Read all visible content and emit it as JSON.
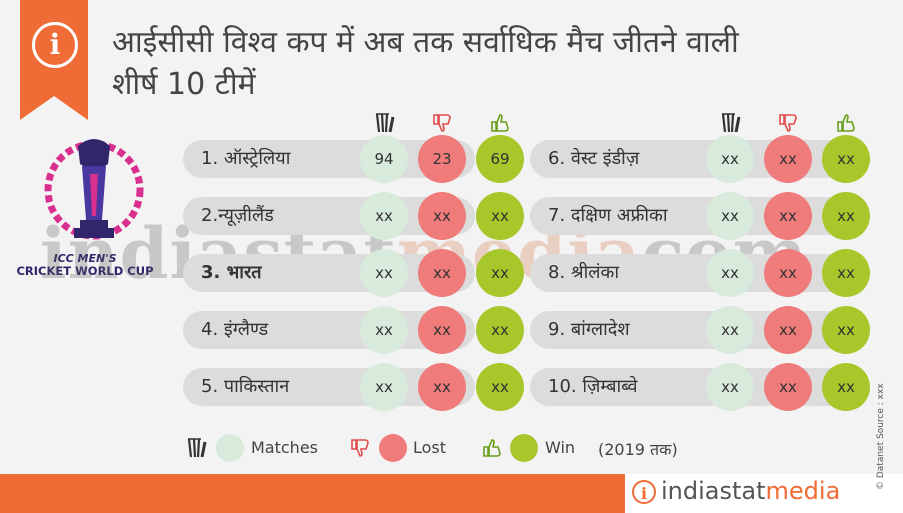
{
  "title_line1": "आईसीसी विश्व कप में अब तक सर्वाधिक मैच जीतने वाली",
  "title_line2": "शीर्ष 10 टीमें",
  "logo": {
    "line1": "ICC MEN'S",
    "line2": "CRICKET WORLD CUP"
  },
  "column_icons": [
    "match-icon",
    "thumbs-down-icon",
    "thumbs-up-icon"
  ],
  "colors": {
    "matches": "#d7eadb",
    "lost": "#ef7b7b",
    "win": "#a7c72a",
    "accent": "#ef6c36"
  },
  "chart_data": {
    "type": "table",
    "columns": [
      "Matches",
      "Lost",
      "Win"
    ],
    "rows": [
      {
        "team": "1. ऑस्ट्रेलिया",
        "matches": "94",
        "lost": "23",
        "win": "69"
      },
      {
        "team": "2.न्यूज़ीलैंड",
        "matches": "xx",
        "lost": "xx",
        "win": "xx"
      },
      {
        "team": "3. भारत",
        "matches": "xx",
        "lost": "xx",
        "win": "xx"
      },
      {
        "team": "4. इंग्लैण्ड",
        "matches": "xx",
        "lost": "xx",
        "win": "xx"
      },
      {
        "team": "5. पाकिस्तान",
        "matches": "xx",
        "lost": "xx",
        "win": "xx"
      },
      {
        "team": "6. वेस्ट इंडीज़",
        "matches": "xx",
        "lost": "xx",
        "win": "xx"
      },
      {
        "team": "7. दक्षिण अफ्रीका",
        "matches": "xx",
        "lost": "xx",
        "win": "xx"
      },
      {
        "team": "8. श्रीलंका",
        "matches": "xx",
        "lost": "xx",
        "win": "xx"
      },
      {
        "team": "9. बांग्लादेश",
        "matches": "xx",
        "lost": "xx",
        "win": "xx"
      },
      {
        "team": "10. ज़िम्बाब्वे",
        "matches": "xx",
        "lost": "xx",
        "win": "xx"
      }
    ]
  },
  "legend": {
    "matches": "Matches",
    "lost": "Lost",
    "win": "Win",
    "note": "(2019 तक)"
  },
  "watermark": {
    "part1": "indiastat",
    "part2": "media",
    "part3": "com"
  },
  "brand": {
    "part1": "indiastat",
    "part2": "media"
  },
  "credit": "© Datanet  Source : xxx"
}
